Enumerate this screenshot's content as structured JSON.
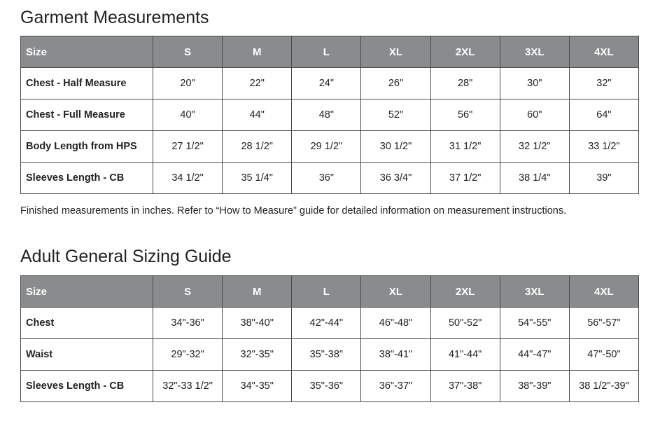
{
  "garment": {
    "title": "Garment Measurements",
    "header": [
      "Size",
      "S",
      "M",
      "L",
      "XL",
      "2XL",
      "3XL",
      "4XL"
    ],
    "rows": [
      [
        "Chest - Half Measure",
        "20\"",
        "22\"",
        "24\"",
        "26\"",
        "28\"",
        "30\"",
        "32\""
      ],
      [
        "Chest - Full Measure",
        "40\"",
        "44\"",
        "48\"",
        "52\"",
        "56\"",
        "60\"",
        "64\""
      ],
      [
        "Body Length from HPS",
        "27 1/2\"",
        "28 1/2\"",
        "29 1/2\"",
        "30 1/2\"",
        "31 1/2\"",
        "32 1/2\"",
        "33 1/2\""
      ],
      [
        "Sleeves Length - CB",
        "34 1/2\"",
        "35 1/4\"",
        "36\"",
        "36 3/4\"",
        "37 1/2\"",
        "38 1/4\"",
        "39\""
      ]
    ],
    "note": "Finished measurements in inches. Refer to “How to Measure” guide for detailed information on measurement instructions."
  },
  "sizing": {
    "title": "Adult General Sizing Guide",
    "header": [
      "Size",
      "S",
      "M",
      "L",
      "XL",
      "2XL",
      "3XL",
      "4XL"
    ],
    "rows": [
      [
        "Chest",
        "34\"-36\"",
        "38\"-40\"",
        "42\"-44\"",
        "46\"-48\"",
        "50\"-52\"",
        "54\"-55\"",
        "56\"-57\""
      ],
      [
        "Waist",
        "29\"-32\"",
        "32\"-35\"",
        "35\"-38\"",
        "38\"-41\"",
        "41\"-44\"",
        "44\"-47\"",
        "47\"-50\""
      ],
      [
        "Sleeves Length - CB",
        "32\"-33 1/2\"",
        "34\"-35\"",
        "35\"-36\"",
        "36\"-37\"",
        "37\"-38\"",
        "38\"-39\"",
        "38 1/2\"-39\""
      ]
    ]
  },
  "colors": {
    "header_bg": "#8a8b8d",
    "header_text": "#ffffff",
    "border": "#4a4a4a"
  }
}
